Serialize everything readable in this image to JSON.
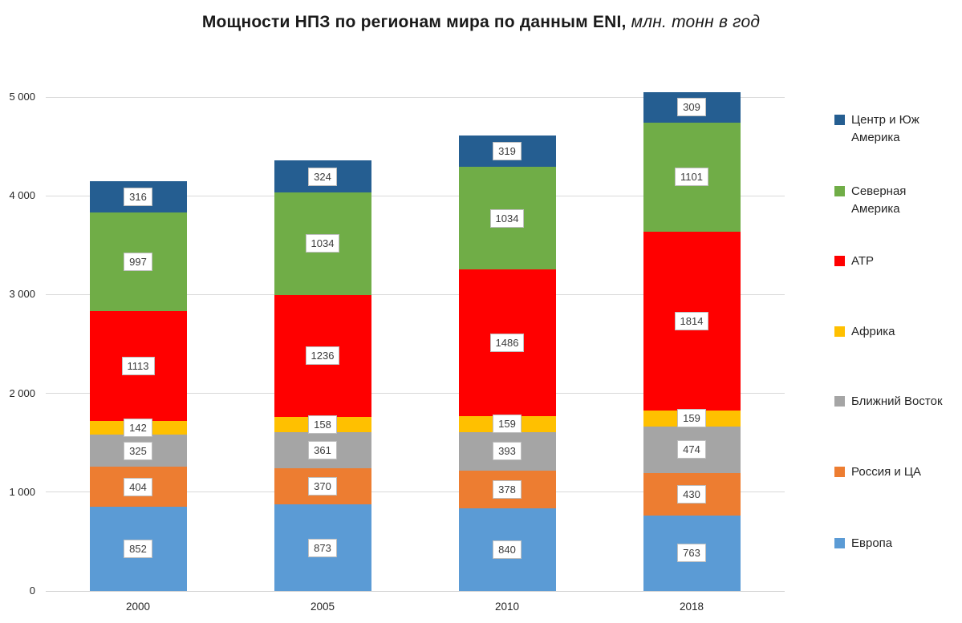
{
  "title": {
    "main": "Мощности НПЗ по регионам мира по данным ENI,",
    "italic": " млн. тонн в год"
  },
  "chart_data": {
    "type": "bar",
    "stacked": true,
    "title": "Мощности НПЗ по регионам мира по данным ENI, млн. тонн в год",
    "categories": [
      "2000",
      "2005",
      "2010",
      "2018"
    ],
    "series": [
      {
        "name": "Европа",
        "color": "#5B9BD5",
        "values": [
          852,
          873,
          840,
          763
        ],
        "legend_lines": [
          "Европа"
        ]
      },
      {
        "name": "Россия и ЦА",
        "color": "#ED7D31",
        "values": [
          404,
          370,
          378,
          430
        ],
        "legend_lines": [
          "Россия и ЦА"
        ]
      },
      {
        "name": "Ближний Восток",
        "color": "#A5A5A5",
        "values": [
          325,
          361,
          393,
          474
        ],
        "legend_lines": [
          "Ближний Восток"
        ]
      },
      {
        "name": "Африка",
        "color": "#FFC000",
        "values": [
          142,
          158,
          159,
          159
        ],
        "legend_lines": [
          "Африка"
        ]
      },
      {
        "name": "АТР",
        "color": "#FF0000",
        "values": [
          1113,
          1236,
          1486,
          1814
        ],
        "legend_lines": [
          "АТР"
        ]
      },
      {
        "name": "Северная Америка",
        "color": "#70AD47",
        "values": [
          997,
          1034,
          1034,
          1101
        ],
        "legend_lines": [
          "Северная",
          "Америка"
        ]
      },
      {
        "name": "Центр и Юж Америка",
        "color": "#255E91",
        "values": [
          316,
          324,
          319,
          309
        ],
        "legend_lines": [
          "Центр и Юж",
          "Америка"
        ]
      }
    ],
    "totals": [
      4149,
      4356,
      4609,
      5050
    ],
    "ylim": [
      0,
      5000
    ],
    "ytick_values": [
      0,
      1000,
      2000,
      3000,
      4000,
      5000
    ],
    "ytick_labels": [
      "0",
      "1 000",
      "2 000",
      "3 000",
      "4 000",
      "5 000"
    ],
    "xlabel": "",
    "ylabel": "",
    "grid": true,
    "legend_position": "right",
    "legend_order": "top-to-bottom-reversed",
    "data_labels": "shown-in-white-boxes"
  },
  "colors": {
    "gridline": "#D9D9D9",
    "axis_text": "#262626",
    "data_label_bg": "#FFFFFF",
    "data_label_border": "#BFBFBF",
    "data_label_text": "#3B3B3B"
  }
}
